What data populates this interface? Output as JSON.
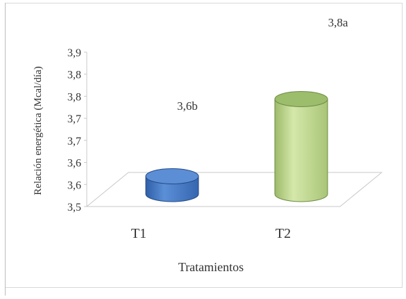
{
  "chart_data": {
    "type": "bar",
    "categories": [
      "T1",
      "T2"
    ],
    "series": [
      {
        "values": [
          3.6,
          3.8
        ]
      }
    ],
    "data_labels": [
      "3,6b",
      "3,8a"
    ],
    "ylabel": "Relación energética (Mcal/día)",
    "xlabel": "Tratamientos",
    "yticks": [
      "3,5",
      "3,6",
      "3,6",
      "3,7",
      "3,7",
      "3,8",
      "3,8",
      "3,9"
    ],
    "ylim": [
      3.5,
      3.9
    ],
    "grid": false,
    "legend": "none",
    "colors": {
      "T1": "#4a7bc4",
      "T2": "#b9d38a",
      "frame": "#d8d8d8"
    }
  }
}
